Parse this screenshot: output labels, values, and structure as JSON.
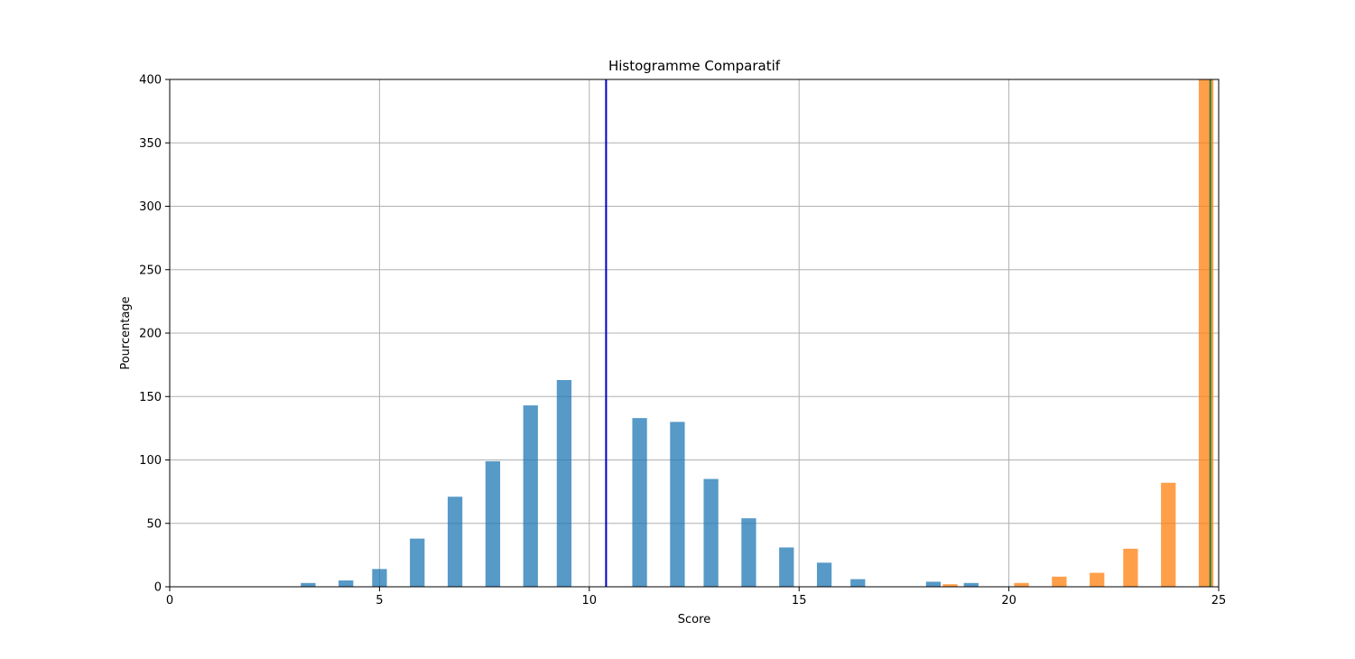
{
  "chart_data": {
    "type": "bar",
    "title": "Histogramme Comparatif",
    "xlabel": "Score",
    "ylabel": "Pourcentage",
    "xlim": [
      0,
      25
    ],
    "ylim": [
      0,
      400
    ],
    "x_ticks": [
      0,
      5,
      10,
      15,
      20,
      25
    ],
    "y_ticks": [
      0,
      50,
      100,
      150,
      200,
      250,
      300,
      350,
      400
    ],
    "grid": true,
    "bar_width": 0.35,
    "series": [
      {
        "color": "#1f77b4",
        "opacity": 0.75,
        "x": [
          3.3,
          4.2,
          5.0,
          5.9,
          6.8,
          7.7,
          8.6,
          9.4,
          11.2,
          12.1,
          12.9,
          13.8,
          14.7,
          15.6,
          16.4,
          18.2,
          19.1
        ],
        "values": [
          3,
          5,
          14,
          38,
          71,
          99,
          143,
          163,
          133,
          130,
          85,
          54,
          31,
          19,
          6,
          4,
          3
        ]
      },
      {
        "color": "#ff7f0e",
        "opacity": 0.75,
        "x": [
          18.6,
          20.3,
          21.2,
          22.1,
          22.9,
          23.8,
          24.7
        ],
        "values": [
          2,
          3,
          8,
          11,
          30,
          82,
          400
        ]
      }
    ],
    "vlines": [
      {
        "x": 10.4,
        "color": "#0000cc"
      },
      {
        "x": 24.8,
        "color": "#2e7d32"
      }
    ]
  }
}
